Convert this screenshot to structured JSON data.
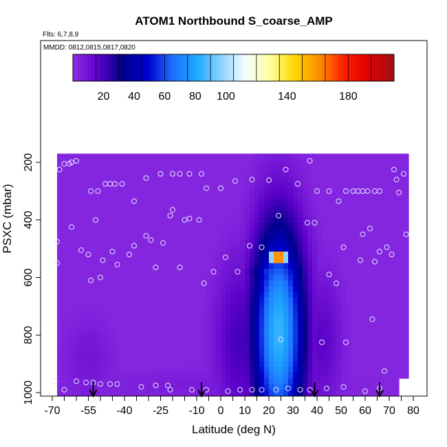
{
  "chart_data": {
    "type": "heatmap",
    "title": "ATOM1 Northbound S_coarse_AMP",
    "flights_note": "Flts: 6,7,8,9",
    "dates_note": "MMDD: 0812,0815,0817,0820",
    "xlabel": "Latitude (deg N)",
    "ylabel": "PSXC (mbar)",
    "xlim": [
      -70,
      82
    ],
    "ylim": [
      1000,
      40
    ],
    "x_ticks": [
      -70,
      -55,
      -40,
      -25,
      -10,
      0,
      10,
      20,
      30,
      40,
      50,
      60,
      70,
      80
    ],
    "x_tick_labels": [
      "-70",
      "-55",
      "-40",
      "-25",
      "-10",
      "0",
      "10",
      "20",
      "30",
      "40",
      "50",
      "60",
      "70",
      "80"
    ],
    "y_ticks": [
      200,
      400,
      600,
      800,
      1000
    ],
    "y_tick_labels": [
      "200",
      "400",
      "600",
      "800",
      "1000"
    ],
    "colorbar": {
      "range": [
        0,
        210
      ],
      "ticks": [
        20,
        40,
        60,
        80,
        100,
        140,
        180
      ],
      "tick_labels": [
        "20",
        "40",
        "60",
        "80",
        "100",
        "140",
        "180"
      ],
      "colors": [
        "#8a2be2",
        "#5a00c8",
        "#00008b",
        "#0000cd",
        "#1e6fff",
        "#1ea8ff",
        "#8fd4ff",
        "#f5ffff",
        "#ffff99",
        "#ffd700",
        "#ff8c00",
        "#ff2000",
        "#e00000",
        "#a01010"
      ]
    },
    "background_value": 2,
    "hotspots": [
      {
        "lat": 24,
        "p": 790,
        "dlat": 11,
        "dp": 380,
        "value": 85
      },
      {
        "lat": 26,
        "p": 710,
        "dlat": 7,
        "dp": 45,
        "value": 80
      },
      {
        "lat": 22,
        "p": 580,
        "dlat": 10,
        "dp": 45,
        "value": 60
      },
      {
        "lat": 24,
        "p": 530,
        "dlat": 4,
        "dp": 25,
        "value": 200
      },
      {
        "lat": 8,
        "p": 820,
        "dlat": 11,
        "dp": 300,
        "value": 20
      },
      {
        "lat": 42,
        "p": 820,
        "dlat": 9,
        "dp": 260,
        "value": 15
      },
      {
        "lat": -55,
        "p": 880,
        "dlat": 12,
        "dp": 160,
        "value": 8
      },
      {
        "lat": 0,
        "p": 970,
        "dlat": 70,
        "dp": 60,
        "value": 6
      }
    ],
    "sample_points": [
      [
        -67,
        225
      ],
      [
        -65,
        205
      ],
      [
        -63,
        205
      ],
      [
        -62,
        200
      ],
      [
        -60,
        195
      ],
      [
        -54,
        300
      ],
      [
        -51,
        300
      ],
      [
        -48,
        275
      ],
      [
        -46,
        275
      ],
      [
        -44,
        275
      ],
      [
        -41,
        275
      ],
      [
        -36,
        335
      ],
      [
        -31,
        255
      ],
      [
        -25,
        240
      ],
      [
        -20,
        240
      ],
      [
        -17,
        240
      ],
      [
        -13,
        240
      ],
      [
        -8,
        240
      ],
      [
        -6,
        290
      ],
      [
        0,
        290
      ],
      [
        6,
        265
      ],
      [
        13,
        260
      ],
      [
        20,
        262
      ],
      [
        27,
        225
      ],
      [
        32,
        275
      ],
      [
        37,
        195
      ],
      [
        40,
        300
      ],
      [
        45,
        300
      ],
      [
        49,
        335
      ],
      [
        52,
        300
      ],
      [
        55,
        300
      ],
      [
        57,
        300
      ],
      [
        59,
        300
      ],
      [
        61,
        300
      ],
      [
        64,
        300
      ],
      [
        66,
        300
      ],
      [
        72,
        225
      ],
      [
        73,
        260
      ],
      [
        74,
        305
      ],
      [
        76,
        240
      ],
      [
        -68,
        475
      ],
      [
        -62,
        425
      ],
      [
        -58,
        505
      ],
      [
        -55,
        520
      ],
      [
        -52,
        400
      ],
      [
        -49,
        540
      ],
      [
        -45,
        510
      ],
      [
        -38,
        520
      ],
      [
        -36,
        490
      ],
      [
        -31,
        455
      ],
      [
        -29,
        470
      ],
      [
        -27,
        565
      ],
      [
        -24,
        480
      ],
      [
        -21,
        385
      ],
      [
        -20,
        365
      ],
      [
        -17,
        565
      ],
      [
        -15,
        400
      ],
      [
        -13,
        395
      ],
      [
        -9,
        400
      ],
      [
        -7,
        620
      ],
      [
        -3,
        580
      ],
      [
        2,
        530
      ],
      [
        7,
        580
      ],
      [
        12,
        490
      ],
      [
        17,
        495
      ],
      [
        24,
        385
      ],
      [
        36,
        410
      ],
      [
        39,
        410
      ],
      [
        45,
        590
      ],
      [
        48,
        620
      ],
      [
        51,
        495
      ],
      [
        58,
        540
      ],
      [
        59,
        450
      ],
      [
        62,
        430
      ],
      [
        64,
        545
      ],
      [
        66,
        510
      ],
      [
        69,
        495
      ],
      [
        71,
        520
      ],
      [
        77,
        450
      ],
      [
        -54,
        610
      ],
      [
        -50,
        600
      ],
      [
        -68,
        550
      ],
      [
        -43,
        555
      ],
      [
        25,
        815
      ],
      [
        42,
        825
      ],
      [
        52,
        825
      ],
      [
        63,
        745
      ],
      [
        68,
        925
      ],
      [
        -69,
        960
      ],
      [
        -65,
        990
      ],
      [
        -60,
        960
      ],
      [
        -56,
        965
      ],
      [
        -53,
        965
      ],
      [
        -50,
        970
      ],
      [
        -46,
        970
      ],
      [
        -43,
        970
      ],
      [
        -33,
        980
      ],
      [
        -27,
        975
      ],
      [
        -22,
        975
      ],
      [
        -21,
        990
      ],
      [
        -12,
        990
      ],
      [
        -6,
        990
      ],
      [
        3,
        995
      ],
      [
        8,
        990
      ],
      [
        13,
        990
      ],
      [
        17,
        990
      ],
      [
        23,
        990
      ],
      [
        28,
        985
      ],
      [
        33,
        990
      ],
      [
        37,
        990
      ],
      [
        44,
        985
      ],
      [
        51,
        980
      ],
      [
        60,
        995
      ],
      [
        66,
        985
      ]
    ],
    "arrows_lat": [
      -53,
      -8,
      39,
      66
    ],
    "grid": false,
    "legend_position": "top"
  }
}
